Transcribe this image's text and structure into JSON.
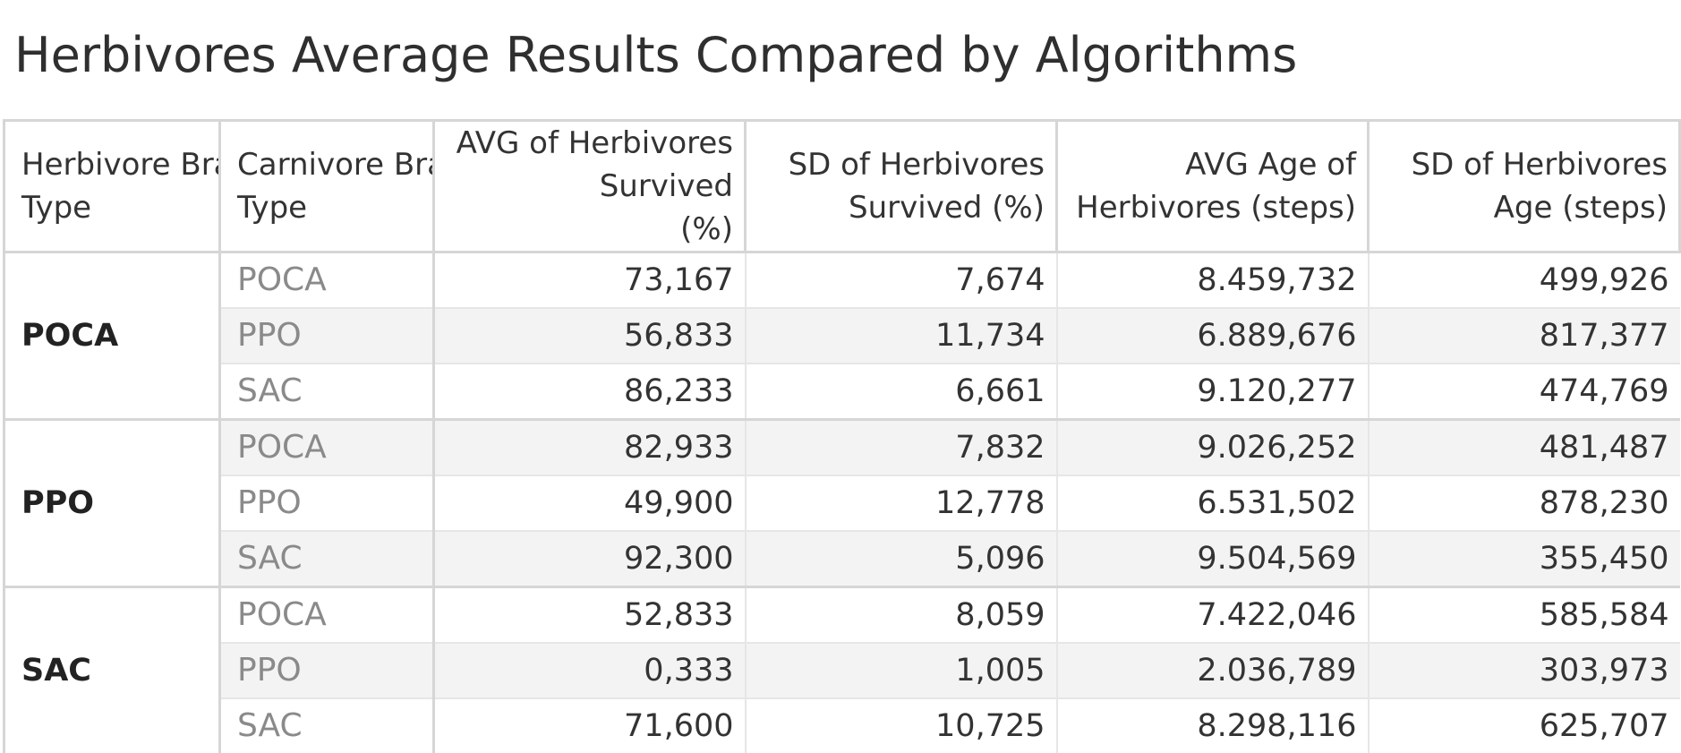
{
  "title": "Herbivores Average Results Compared by Algorithms",
  "chart_data": {
    "type": "table",
    "title": "Herbivores Average Results Compared by Algorithms",
    "columns": [
      "Herbivore Brain Type",
      "Carnivore Brain Type",
      "AVG of Herbivores Survived (%)",
      "SD of Herbivores Survived (%)",
      "AVG Age of Herbivores (steps)",
      "SD of Herbivores Age (steps)"
    ],
    "groups": [
      {
        "herbivore": "POCA",
        "rows": [
          {
            "carnivore": "POCA",
            "values": [
              "73,167",
              "7,674",
              "8.459,732",
              "499,926"
            ]
          },
          {
            "carnivore": "PPO",
            "values": [
              "56,833",
              "11,734",
              "6.889,676",
              "817,377"
            ]
          },
          {
            "carnivore": "SAC",
            "values": [
              "86,233",
              "6,661",
              "9.120,277",
              "474,769"
            ]
          }
        ]
      },
      {
        "herbivore": "PPO",
        "rows": [
          {
            "carnivore": "POCA",
            "values": [
              "82,933",
              "7,832",
              "9.026,252",
              "481,487"
            ]
          },
          {
            "carnivore": "PPO",
            "values": [
              "49,900",
              "12,778",
              "6.531,502",
              "878,230"
            ]
          },
          {
            "carnivore": "SAC",
            "values": [
              "92,300",
              "5,096",
              "9.504,569",
              "355,450"
            ]
          }
        ]
      },
      {
        "herbivore": "SAC",
        "rows": [
          {
            "carnivore": "POCA",
            "values": [
              "52,833",
              "8,059",
              "7.422,046",
              "585,584"
            ]
          },
          {
            "carnivore": "PPO",
            "values": [
              "0,333",
              "1,005",
              "2.036,789",
              "303,973"
            ]
          },
          {
            "carnivore": "SAC",
            "values": [
              "71,600",
              "10,725",
              "8.298,116",
              "625,707"
            ]
          }
        ]
      }
    ]
  },
  "colors": {
    "text": "#333333",
    "muted_text": "#8a8a8a",
    "band": "#f3f3f3",
    "border": "#d6d6d6"
  }
}
